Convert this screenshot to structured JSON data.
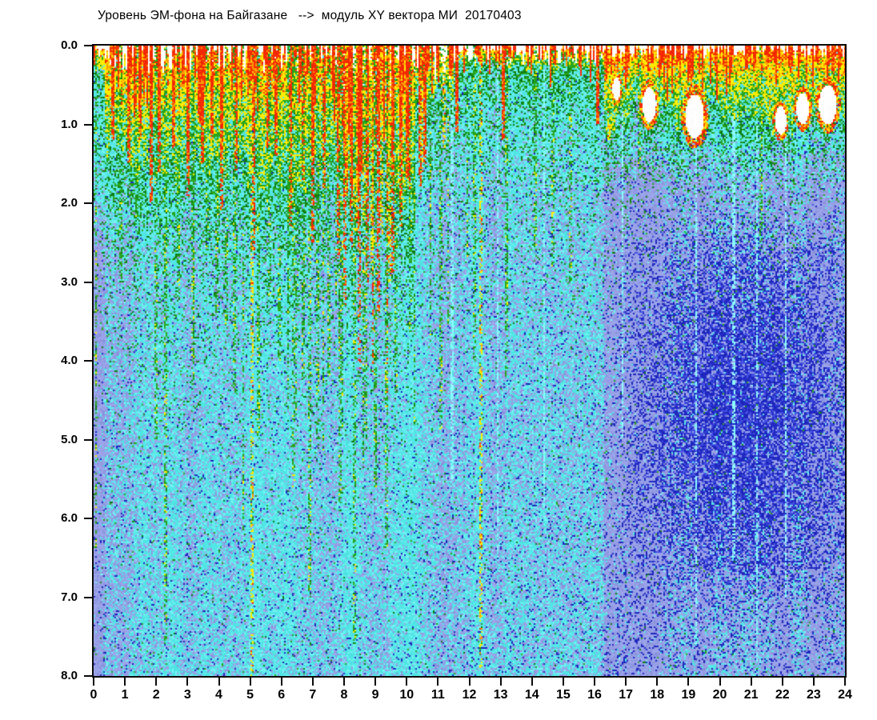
{
  "title": "Уровень ЭМ-фона на Байгазане   -->  модуль XY вектора МИ  20170403",
  "chart_data": {
    "type": "heatmap",
    "subtype": "em-background-spectrogram",
    "title": "Уровень ЭМ-фона на Байгазане   -->  модуль XY вектора МИ  20170403",
    "date": "20170403",
    "station": "Байгазане",
    "quantity": "модуль XY вектора МИ",
    "x_axis": {
      "min": 0,
      "max": 24,
      "tick_step": 1,
      "unit": "hour",
      "ticks": [
        "0",
        "1",
        "2",
        "3",
        "4",
        "5",
        "6",
        "7",
        "8",
        "9",
        "10",
        "11",
        "12",
        "13",
        "14",
        "15",
        "16",
        "17",
        "18",
        "19",
        "20",
        "21",
        "22",
        "23",
        "24"
      ]
    },
    "y_axis": {
      "min": 0.0,
      "max": 8.0,
      "tick_step": 1.0,
      "inverted": true,
      "ticks": [
        "0.0",
        "1.0",
        "2.0",
        "3.0",
        "4.0",
        "5.0",
        "6.0",
        "7.0",
        "8.0"
      ]
    },
    "grid": false,
    "legend": "none",
    "palette": {
      "white": "#ffffff",
      "red": "#f42a02",
      "orange": "#ff9800",
      "yellow": "#ffeb00",
      "green": "#28a61e",
      "dark_green": "#0f7d14",
      "cyan": "#52e5e5",
      "cyan_light": "#74f2f2",
      "cyan_bright": "#8cfcfc",
      "periwinkle": "#9aa3e8",
      "periwinkle_dark": "#8a93dc",
      "blue": "#4350e2",
      "navy": "#2028c0",
      "frame": "#0a0a0a",
      "text": "#000000"
    },
    "structure": {
      "seed": 20170403,
      "regions": [
        {
          "t0": 0,
          "t1": 0.35,
          "hot": 0.35,
          "white": 0.12,
          "spike_p": 0.3,
          "spike_len": [
            0.1,
            0.5
          ],
          "gbase": 0.35,
          "gdecay": 1.2,
          "peri": 0.5,
          "ramp": [
            1.2,
            1.2
          ],
          "navy": 0.05
        },
        {
          "t0": 0.35,
          "t1": 7.7,
          "hot": 1.3,
          "white": 0.22,
          "spike_p": 0.5,
          "spike_len": [
            0.15,
            0.9
          ],
          "gbase": 0.5,
          "gdecay": 1.05,
          "peri": 0.32,
          "ramp": [
            1.4,
            1.4
          ],
          "navy": 0.04
        },
        {
          "t0": 7.7,
          "t1": 10.3,
          "hot": 1.45,
          "white": 0.5,
          "spike_p": 0.6,
          "spike_len": [
            0.3,
            1.7
          ],
          "gbase": 0.55,
          "gdecay": 1.1,
          "peri": 0.28,
          "ramp": [
            1.6,
            1.4
          ],
          "navy": 0.04
        },
        {
          "t0": 10.3,
          "t1": 11.5,
          "hot": 0.55,
          "white": 0.3,
          "spike_p": 0.5,
          "spike_len": [
            0.1,
            0.6
          ],
          "gbase": 0.5,
          "gdecay": 0.9,
          "peri": 0.36,
          "ramp": [
            0.6,
            1.4
          ],
          "navy": 0.05
        },
        {
          "t0": 11.5,
          "t1": 16.3,
          "hot": 0.22,
          "white": 0.15,
          "spike_p": 0.48,
          "spike_len": [
            0.08,
            0.45
          ],
          "gbase": 0.5,
          "gdecay": 0.9,
          "peri": 0.42,
          "ramp": [
            0.6,
            1.5
          ],
          "navy": 0.06
        },
        {
          "t0": 16.3,
          "t1": 24.01,
          "hot": 0.72,
          "white": 0.1,
          "spike_p": 0.5,
          "spike_len": [
            0.1,
            0.55
          ],
          "gbase": 0.55,
          "gdecay": 0.5,
          "peri": 0.78,
          "ramp": [
            1.05,
            0.75
          ],
          "navy": 0.12
        }
      ],
      "red_streaks": [
        [
          0.62,
          1.2
        ],
        [
          1.12,
          1.5
        ],
        [
          1.48,
          1.2
        ],
        [
          1.82,
          2.0
        ],
        [
          2.12,
          1.6
        ],
        [
          2.58,
          1.3
        ],
        [
          3.02,
          1.9
        ],
        [
          3.48,
          1.5
        ],
        [
          3.78,
          1.2
        ],
        [
          4.08,
          2.1
        ],
        [
          4.55,
          1.6
        ],
        [
          5.12,
          2.7
        ],
        [
          5.55,
          1.3
        ],
        [
          5.82,
          1.4
        ],
        [
          6.28,
          2.3
        ],
        [
          6.68,
          1.7
        ],
        [
          7.02,
          2.5
        ],
        [
          7.38,
          1.8
        ],
        [
          7.82,
          2.7
        ],
        [
          8.02,
          3.3
        ],
        [
          8.22,
          2.6
        ],
        [
          8.48,
          4.1
        ],
        [
          8.72,
          3.0
        ],
        [
          8.92,
          4.5
        ],
        [
          9.12,
          3.4
        ],
        [
          9.38,
          4.6
        ],
        [
          9.58,
          2.9
        ],
        [
          9.82,
          2.3
        ],
        [
          10.02,
          1.7
        ],
        [
          10.42,
          1.8
        ],
        [
          10.58,
          1.5
        ],
        [
          11.62,
          1.1
        ],
        [
          13.08,
          1.2
        ],
        [
          16.12,
          1.0
        ]
      ],
      "yellow_streaks": [
        [
          5.08,
          8.0
        ],
        [
          8.08,
          1.9
        ],
        [
          8.38,
          2.4
        ],
        [
          8.62,
          2.2
        ],
        [
          8.88,
          2.9
        ],
        [
          9.18,
          2.4
        ],
        [
          9.48,
          3.0
        ],
        [
          10.48,
          1.6
        ],
        [
          11.18,
          1.3
        ],
        [
          12.35,
          7.9
        ],
        [
          16.45,
          1.2
        ]
      ],
      "green_streaks": [
        [
          0.88,
          3.0
        ],
        [
          1.38,
          2.2
        ],
        [
          1.98,
          5.0
        ],
        [
          2.32,
          7.6
        ],
        [
          2.72,
          3.2
        ],
        [
          3.18,
          4.3
        ],
        [
          3.62,
          2.6
        ],
        [
          3.92,
          3.4
        ],
        [
          4.22,
          3.6
        ],
        [
          4.52,
          4.4
        ],
        [
          4.78,
          6.2
        ],
        [
          5.28,
          5.0
        ],
        [
          5.62,
          3.2
        ],
        [
          5.92,
          4.0
        ],
        [
          6.22,
          3.4
        ],
        [
          6.38,
          5.6
        ],
        [
          6.68,
          4.2
        ],
        [
          6.92,
          7.0
        ],
        [
          7.18,
          5.0
        ],
        [
          7.52,
          4.2
        ],
        [
          7.88,
          5.8
        ],
        [
          8.32,
          7.6
        ],
        [
          8.68,
          5.0
        ],
        [
          9.02,
          5.6
        ],
        [
          9.35,
          6.4
        ],
        [
          9.68,
          4.4
        ],
        [
          10.12,
          3.6
        ],
        [
          11.08,
          5.0
        ],
        [
          12.18,
          4.0
        ],
        [
          13.18,
          4.2
        ],
        [
          14.12,
          2.6
        ],
        [
          14.68,
          2.8
        ],
        [
          15.22,
          3.0
        ],
        [
          17.42,
          1.6
        ],
        [
          21.32,
          2.6
        ]
      ],
      "cyan_streaks": [
        [
          11.45,
          5.5
        ],
        [
          12.9,
          6.5
        ],
        [
          14.4,
          6.0
        ],
        [
          16.9,
          5.0
        ],
        [
          19.25,
          7.6
        ],
        [
          20.45,
          6.5
        ],
        [
          21.2,
          7.8
        ],
        [
          22.1,
          7.0
        ]
      ],
      "white_blobs": [
        {
          "t": 16.7,
          "d": 0.55,
          "rt": 0.12,
          "rd": 0.15
        },
        {
          "t": 17.75,
          "d": 0.75,
          "rt": 0.22,
          "rd": 0.22
        },
        {
          "t": 19.2,
          "d": 0.9,
          "rt": 0.3,
          "rd": 0.28
        },
        {
          "t": 21.95,
          "d": 0.95,
          "rt": 0.18,
          "rd": 0.18
        },
        {
          "t": 22.65,
          "d": 0.8,
          "rt": 0.2,
          "rd": 0.2
        },
        {
          "t": 23.45,
          "d": 0.75,
          "rt": 0.28,
          "rd": 0.25
        }
      ],
      "dark_core": {
        "t_center": 20.8,
        "t_sigma": 2.3,
        "d_center": 4.6,
        "d_sigma": 1.7,
        "t_start": 16.6,
        "d_start": 1.9,
        "d_end": 7.4,
        "navy_boost": 0.42,
        "blue_boost": 0.33
      }
    }
  }
}
